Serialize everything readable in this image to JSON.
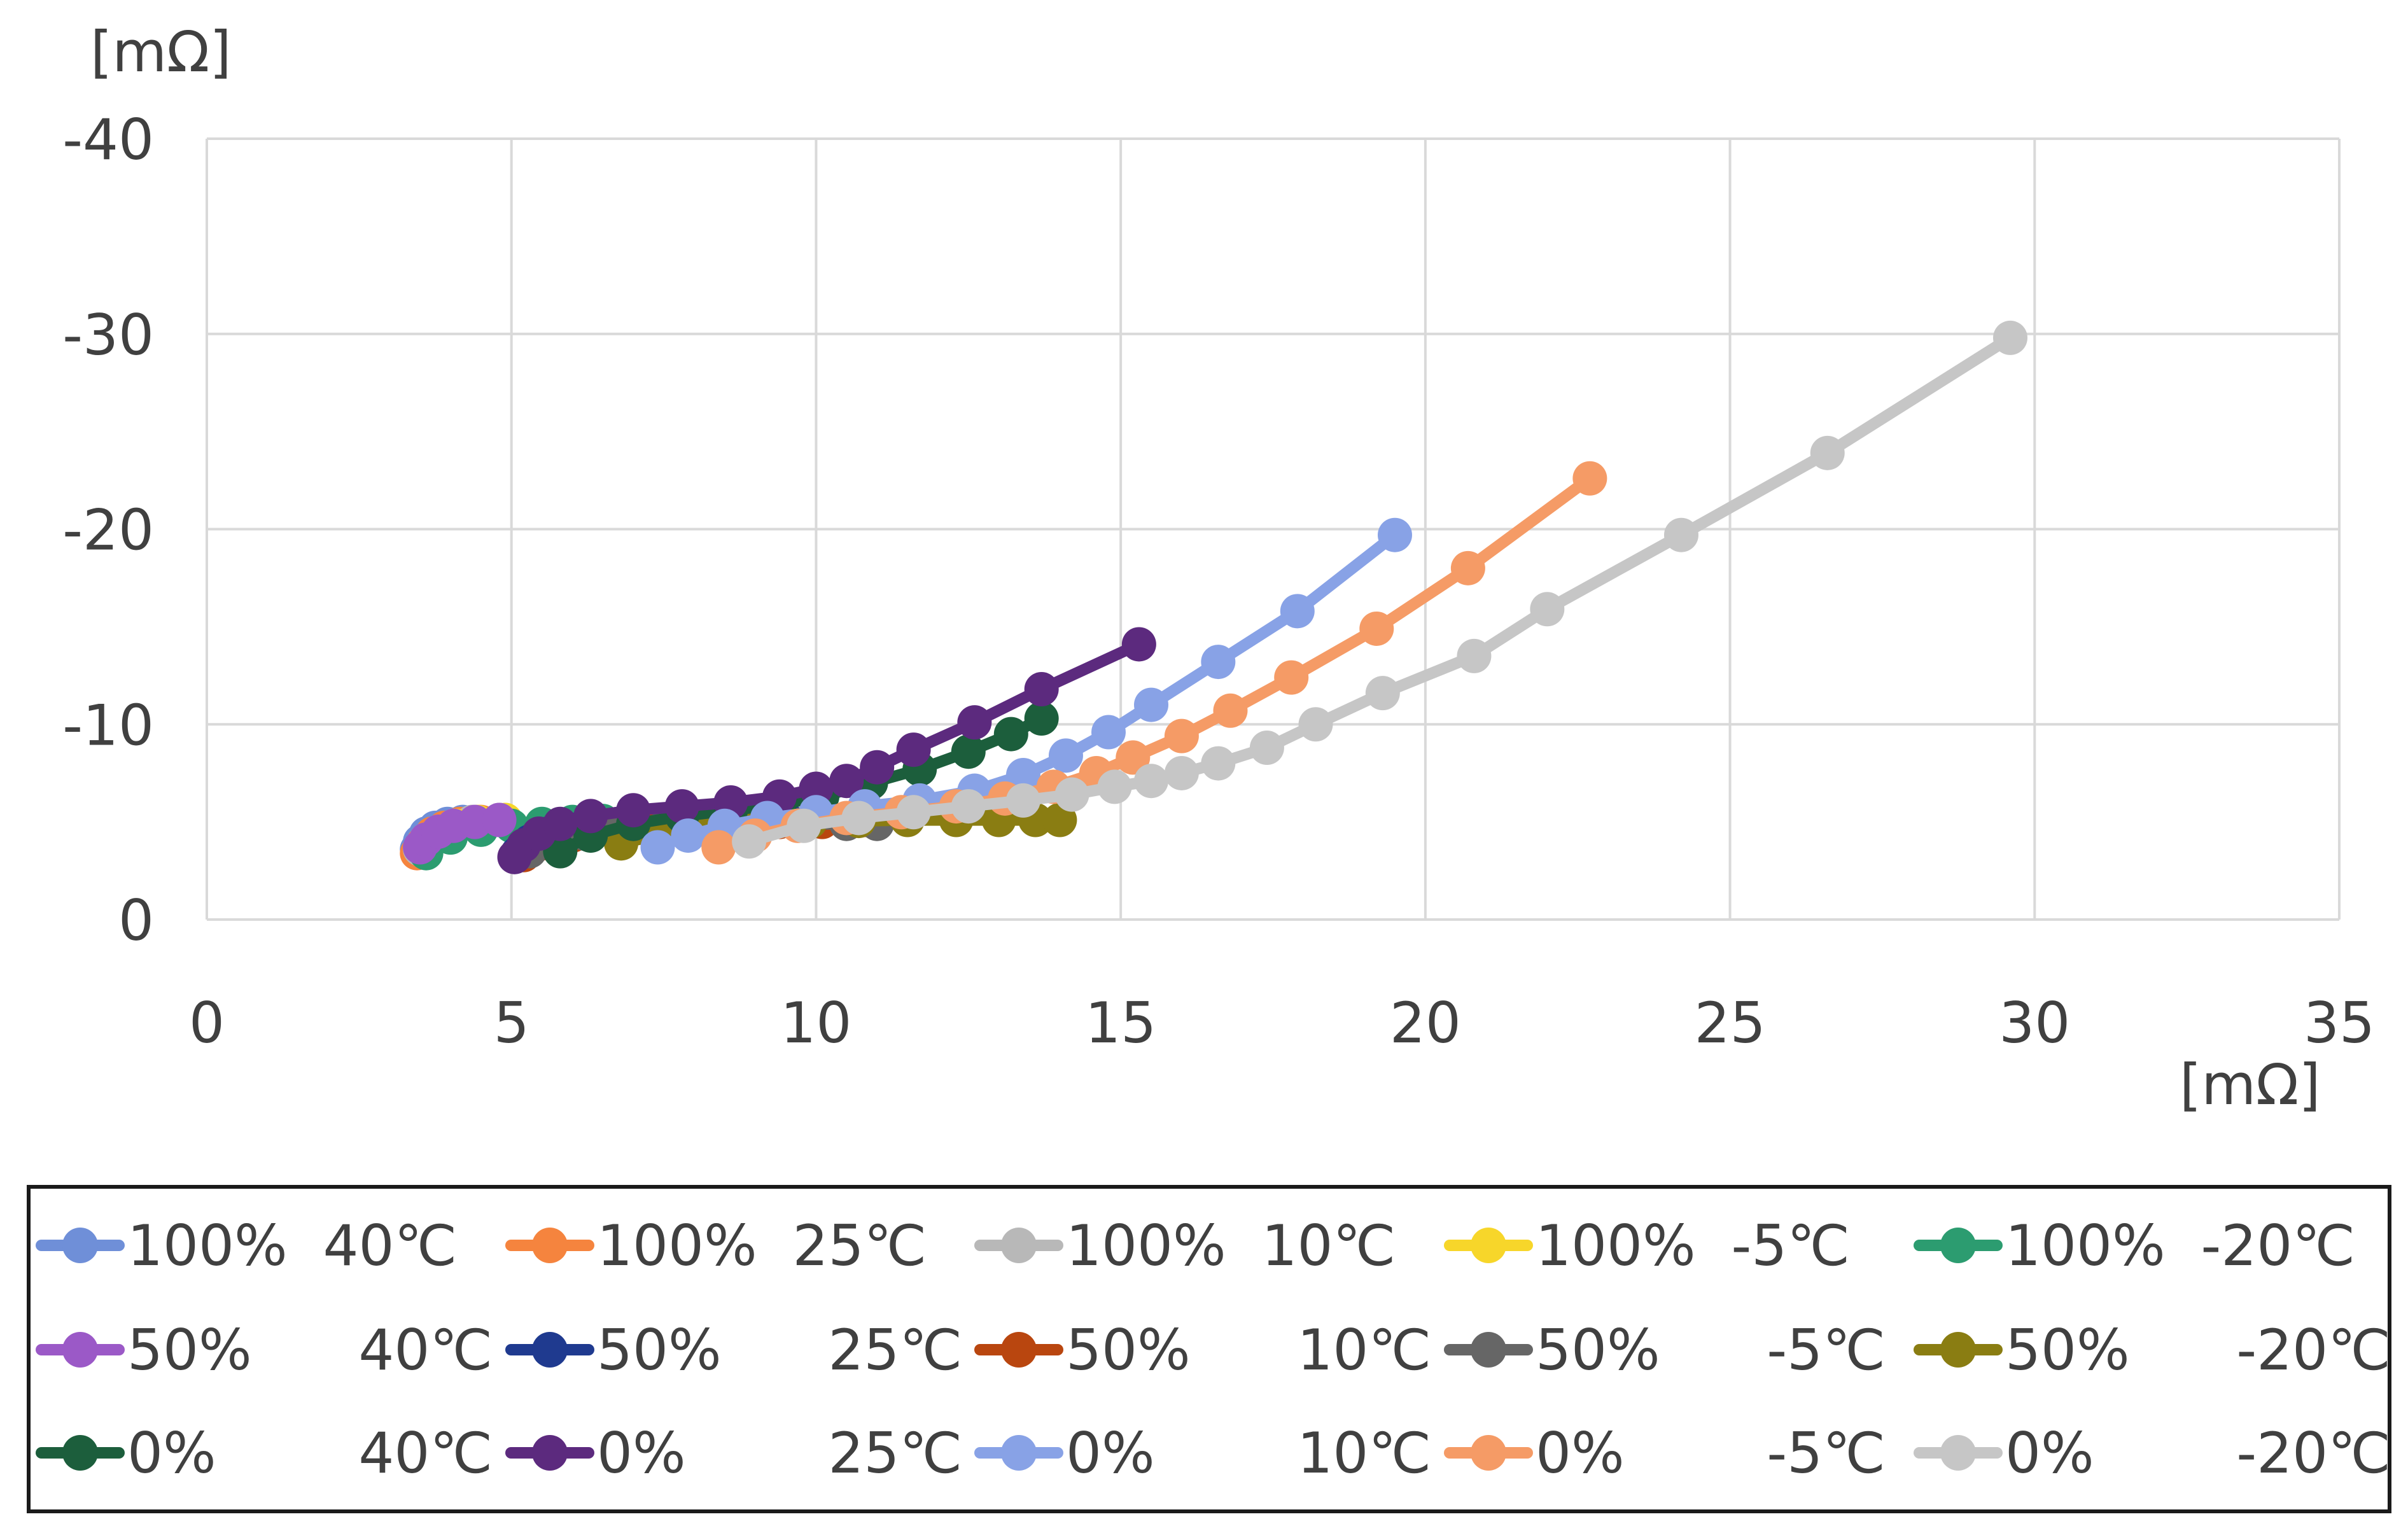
{
  "chart_data": {
    "type": "scatter",
    "subtype": "scatter-with-lines (Nyquist plot)",
    "title": "",
    "x_unit_label": "[mΩ]",
    "y_unit_label": "[mΩ]",
    "xlim": [
      0,
      35
    ],
    "ylim": [
      0,
      -40
    ],
    "x_ticks": [
      0,
      5,
      10,
      15,
      20,
      25,
      30,
      35
    ],
    "y_ticks": [
      0,
      -10,
      -20,
      -30,
      -40
    ],
    "x_tick_labels": [
      "0",
      "5",
      "10",
      "15",
      "20",
      "25",
      "30",
      "35"
    ],
    "y_tick_labels": [
      "0",
      "-10",
      "-20",
      "-30",
      "-40"
    ],
    "grid": true,
    "legend_position": "bottom",
    "series": [
      {
        "name": "100% 40℃",
        "legend_label": "100%  40℃",
        "color": "#6f8fd8",
        "x": [
          3.45,
          3.5,
          3.6,
          3.75,
          3.95,
          4.2
        ],
        "y": [
          -3.6,
          -4.0,
          -4.4,
          -4.7,
          -4.9,
          -5.0
        ]
      },
      {
        "name": "100% 25℃",
        "legend_label": "100%  25℃",
        "color": "#f5843e",
        "x": [
          3.45,
          3.55,
          3.7,
          3.9,
          4.15,
          4.5
        ],
        "y": [
          -3.4,
          -3.9,
          -4.4,
          -4.7,
          -4.9,
          -5.0
        ]
      },
      {
        "name": "100% 10℃",
        "legend_label": "100%  10℃",
        "color": "#b8b8b8",
        "x": [
          3.5,
          3.6,
          3.8,
          4.05,
          4.35,
          4.8
        ],
        "y": [
          -3.6,
          -4.1,
          -4.5,
          -4.8,
          -5.0,
          -5.1
        ]
      },
      {
        "name": "100% -5℃",
        "legend_label": "100%  -5℃",
        "color": "#f7d62a",
        "x": [
          3.55,
          3.65,
          3.85,
          4.1,
          4.45,
          4.9
        ],
        "y": [
          -3.6,
          -4.1,
          -4.5,
          -4.8,
          -5.0,
          -5.1
        ]
      },
      {
        "name": "100% -20℃",
        "legend_label": "100%  -20℃",
        "color": "#2c9c70",
        "x": [
          3.6,
          4.0,
          4.5,
          5.0,
          5.5,
          6.0,
          6.5,
          7.0
        ],
        "y": [
          -3.4,
          -4.2,
          -4.6,
          -4.8,
          -4.9,
          -5.0,
          -5.05,
          -5.1
        ]
      },
      {
        "name": "50% 40℃",
        "legend_label": "50%      40℃",
        "color": "#9b59c7",
        "x": [
          3.5,
          3.6,
          3.8,
          4.05,
          4.4,
          4.8
        ],
        "y": [
          -3.7,
          -4.1,
          -4.5,
          -4.8,
          -5.0,
          -5.1
        ]
      },
      {
        "name": "50% 25℃",
        "legend_label": "50%      25℃",
        "color": "#1f3a8f",
        "x": [
          5.1,
          5.3,
          5.6,
          6.0,
          6.5,
          7.0,
          7.5,
          8.0,
          8.5,
          9.0,
          9.5,
          10.0
        ],
        "y": [
          -3.4,
          -4.0,
          -4.4,
          -4.6,
          -4.8,
          -4.9,
          -5.0,
          -5.0,
          -5.1,
          -5.1,
          -5.2,
          -5.3
        ]
      },
      {
        "name": "50% 10℃",
        "legend_label": "50%      10℃",
        "color": "#b9460f",
        "x": [
          5.2,
          5.5,
          6.0,
          6.6,
          7.3,
          8.0,
          8.7,
          9.4,
          10.1,
          10.8
        ],
        "y": [
          -3.3,
          -3.9,
          -4.3,
          -4.6,
          -4.8,
          -4.9,
          -5.0,
          -5.0,
          -5.0,
          -5.1
        ]
      },
      {
        "name": "50% -5℃",
        "legend_label": "50%      -5℃",
        "color": "#666666",
        "x": [
          5.3,
          5.7,
          6.2,
          6.8,
          7.5,
          8.3,
          9.0,
          9.8,
          10.5,
          11.0
        ],
        "y": [
          -3.5,
          -4.1,
          -4.4,
          -4.6,
          -4.7,
          -4.8,
          -4.85,
          -4.9,
          -4.9,
          -4.9
        ]
      },
      {
        "name": "50% -20℃",
        "legend_label": "50%      -20℃",
        "color": "#8a7d12",
        "x": [
          6.8,
          7.5,
          8.3,
          9.1,
          9.9,
          10.7,
          11.5,
          12.3,
          13.0,
          13.6,
          14.0
        ],
        "y": [
          -3.9,
          -4.4,
          -4.7,
          -4.9,
          -5.0,
          -5.05,
          -5.1,
          -5.1,
          -5.1,
          -5.1,
          -5.1
        ]
      },
      {
        "name": "0% 40℃",
        "legend_label": "0%        40℃",
        "color": "#1c5e3c",
        "x": [
          5.8,
          6.3,
          7.0,
          7.8,
          8.6,
          9.4,
          10.1,
          10.9,
          11.7,
          12.5,
          13.2,
          13.7
        ],
        "y": [
          -3.5,
          -4.3,
          -4.9,
          -5.3,
          -5.6,
          -5.9,
          -6.3,
          -7.0,
          -7.7,
          -8.6,
          -9.5,
          -10.3
        ]
      },
      {
        "name": "0% 25℃",
        "legend_label": "0%        25℃",
        "color": "#5c2a7e",
        "x": [
          5.05,
          5.2,
          5.45,
          5.8,
          6.3,
          7.0,
          7.8,
          8.6,
          9.4,
          10.0,
          10.5,
          11.0,
          11.6,
          12.6,
          13.7,
          15.3
        ],
        "y": [
          -3.2,
          -3.8,
          -4.4,
          -4.9,
          -5.3,
          -5.6,
          -5.8,
          -6.0,
          -6.3,
          -6.7,
          -7.1,
          -7.8,
          -8.7,
          -10.1,
          -11.8,
          -14.1
        ]
      },
      {
        "name": "0% 10℃",
        "legend_label": "0%        10℃",
        "color": "#88a2e6",
        "x": [
          7.4,
          7.9,
          8.5,
          9.2,
          10.0,
          10.8,
          11.7,
          12.6,
          13.4,
          14.1,
          14.8,
          15.5,
          16.6,
          17.9,
          19.5
        ],
        "y": [
          -3.7,
          -4.3,
          -4.8,
          -5.2,
          -5.5,
          -5.8,
          -6.1,
          -6.6,
          -7.4,
          -8.4,
          -9.6,
          -11.0,
          -13.2,
          -15.8,
          -19.7
        ]
      },
      {
        "name": "0% -5℃",
        "legend_label": "0%        -5℃",
        "color": "#f59b66",
        "x": [
          8.4,
          9.0,
          9.7,
          10.5,
          11.4,
          12.3,
          13.1,
          13.9,
          14.6,
          15.2,
          16.0,
          16.8,
          17.8,
          19.2,
          20.7,
          22.7
        ],
        "y": [
          -3.7,
          -4.3,
          -4.8,
          -5.2,
          -5.5,
          -5.8,
          -6.2,
          -6.8,
          -7.5,
          -8.3,
          -9.4,
          -10.7,
          -12.4,
          -14.9,
          -18.0,
          -22.6
        ]
      },
      {
        "name": "0% -20℃",
        "legend_label": "0%        -20℃",
        "color": "#c6c6c6",
        "x": [
          8.9,
          9.8,
          10.7,
          11.6,
          12.5,
          13.4,
          14.2,
          14.9,
          15.5,
          16.0,
          16.6,
          17.4,
          18.2,
          19.3,
          20.8,
          22.0,
          24.2,
          26.6,
          29.6
        ],
        "y": [
          -4.0,
          -4.8,
          -5.2,
          -5.5,
          -5.8,
          -6.1,
          -6.4,
          -6.8,
          -7.1,
          -7.5,
          -8.0,
          -8.8,
          -10.0,
          -11.6,
          -13.5,
          -15.9,
          -19.7,
          -23.9,
          -29.8
        ]
      }
    ]
  }
}
